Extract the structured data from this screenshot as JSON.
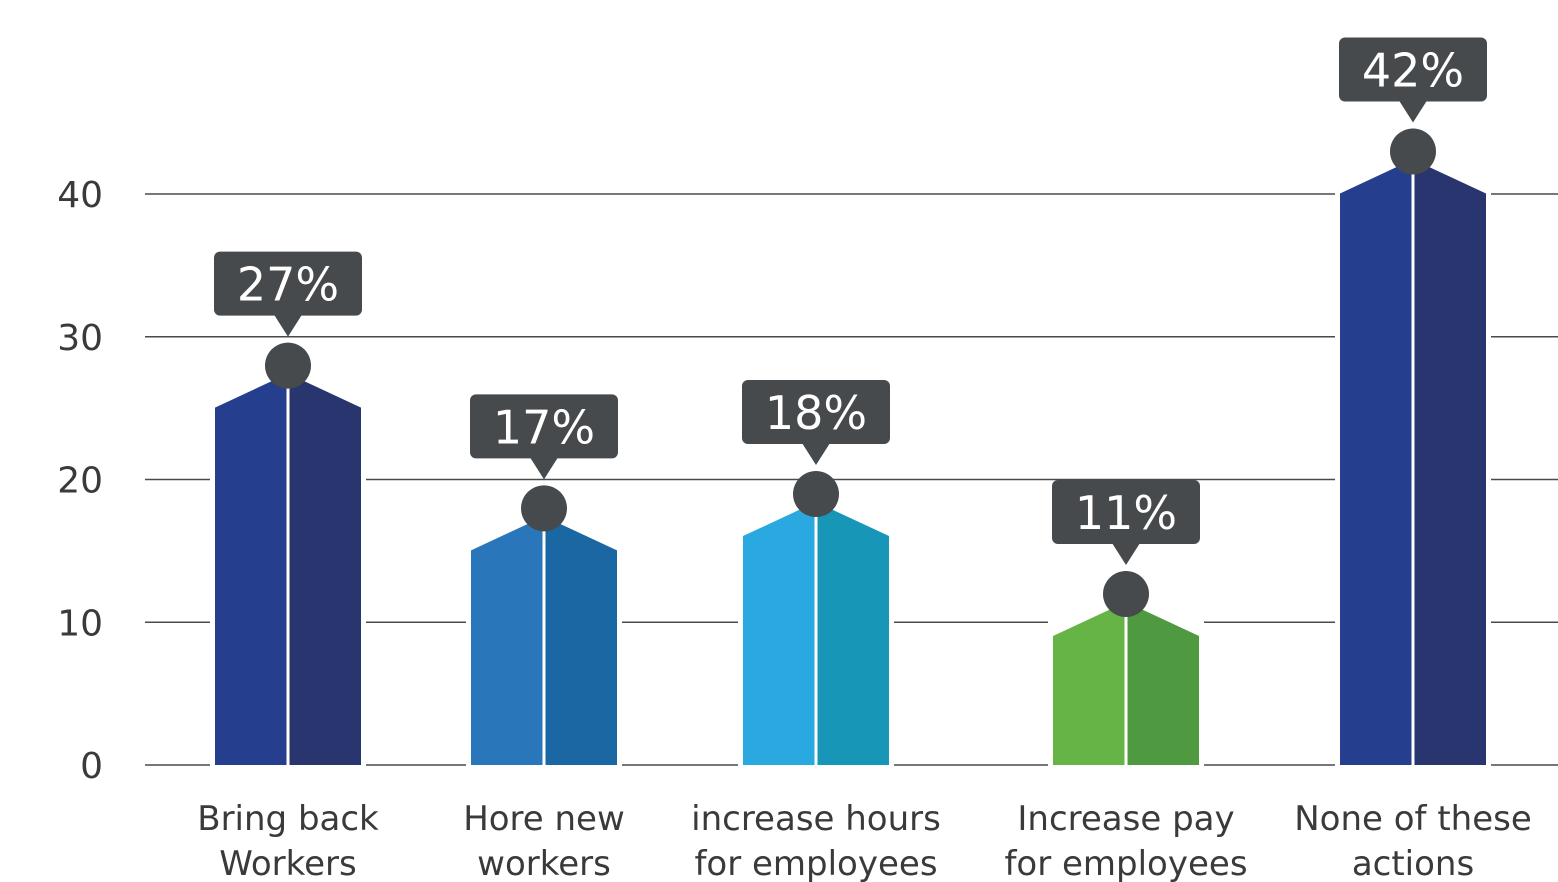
{
  "chart_data": {
    "type": "bar",
    "categories": [
      [
        "Bring back",
        "Workers"
      ],
      [
        "Hore new",
        "workers"
      ],
      [
        "increase hours",
        "for employees"
      ],
      [
        "Increase pay",
        "for employees"
      ],
      [
        "None of these",
        "actions"
      ]
    ],
    "values": [
      27,
      17,
      18,
      11,
      42
    ],
    "data_labels": [
      "27%",
      "17%",
      "18%",
      "11%",
      "42%"
    ],
    "bar_colors": [
      [
        "#253f8e",
        "#28356e"
      ],
      [
        "#2a76ba",
        "#1b67a3"
      ],
      [
        "#2aa9e0",
        "#1896b8"
      ],
      [
        "#66b446",
        "#4f9a40"
      ],
      [
        "#253f8e",
        "#28356e"
      ]
    ],
    "callout_color": "#474a4c",
    "ylim": [
      0,
      40
    ],
    "yticks": [
      0,
      10,
      20,
      30,
      40
    ],
    "grid": true,
    "title": "",
    "xlabel": "",
    "ylabel": ""
  }
}
